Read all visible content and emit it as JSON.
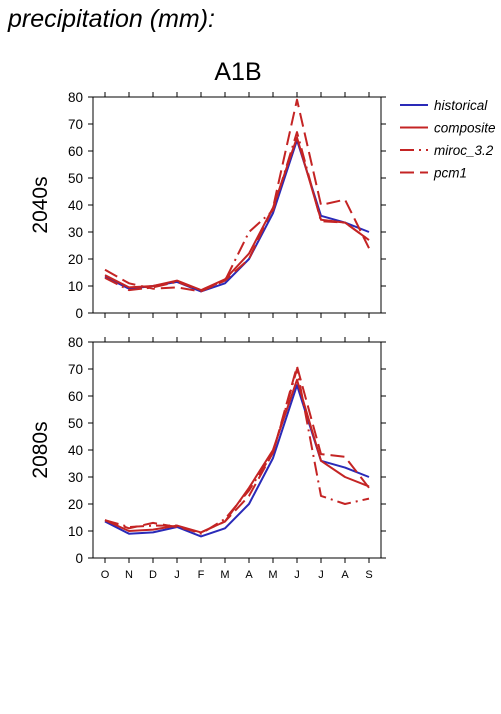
{
  "page_title": "precipitation (mm):",
  "scenario": "A1B",
  "legend": [
    {
      "label": "historical",
      "color": "#2a2ab8",
      "dash": "solid"
    },
    {
      "label": "composite",
      "color": "#c42424",
      "dash": "solid"
    },
    {
      "label": "miroc_3.2",
      "color": "#c42424",
      "dash": "dashdot"
    },
    {
      "label": "pcm1",
      "color": "#c42424",
      "dash": "dashed"
    }
  ],
  "chart_data": [
    {
      "type": "line",
      "ylabel": "2040s",
      "ylim": [
        0,
        80
      ],
      "yticks": [
        0,
        10,
        20,
        30,
        40,
        50,
        60,
        70,
        80
      ],
      "categories": [
        "O",
        "N",
        "D",
        "J",
        "F",
        "M",
        "A",
        "M",
        "J",
        "J",
        "A",
        "S"
      ],
      "series": [
        {
          "name": "historical",
          "values": [
            13.5,
            9,
            10,
            11.5,
            8,
            11,
            20,
            37,
            64,
            36,
            33.5,
            30
          ]
        },
        {
          "name": "composite",
          "values": [
            14,
            9.5,
            10,
            12,
            8.5,
            12.5,
            22,
            39,
            65,
            34.5,
            33.5,
            27
          ]
        },
        {
          "name": "miroc_3.2",
          "values": [
            13,
            8.5,
            9.5,
            11.5,
            8.5,
            12,
            30,
            38,
            67,
            34,
            33.5,
            27
          ]
        },
        {
          "name": "pcm1",
          "values": [
            16,
            11,
            9,
            9.5,
            8,
            12,
            20,
            39,
            79,
            40,
            42,
            24
          ]
        }
      ]
    },
    {
      "type": "line",
      "ylabel": "2080s",
      "ylim": [
        0,
        80
      ],
      "yticks": [
        0,
        10,
        20,
        30,
        40,
        50,
        60,
        70,
        80
      ],
      "categories": [
        "O",
        "N",
        "D",
        "J",
        "F",
        "M",
        "A",
        "M",
        "J",
        "J",
        "A",
        "S"
      ],
      "series": [
        {
          "name": "historical",
          "values": [
            13.5,
            9,
            9.5,
            11.5,
            8,
            11,
            20,
            37,
            64,
            36,
            33.5,
            30
          ]
        },
        {
          "name": "composite",
          "values": [
            14,
            10,
            10.5,
            12,
            9.5,
            13.5,
            26,
            40,
            66,
            36,
            30,
            26.5
          ]
        },
        {
          "name": "miroc_3.2",
          "values": [
            14,
            11.5,
            12,
            12,
            9,
            14.5,
            25,
            39,
            70,
            23,
            20,
            22
          ]
        },
        {
          "name": "pcm1",
          "values": [
            14,
            11,
            13,
            11.5,
            9.5,
            13.5,
            23,
            39,
            71,
            38.5,
            37.5,
            26
          ]
        }
      ]
    }
  ]
}
